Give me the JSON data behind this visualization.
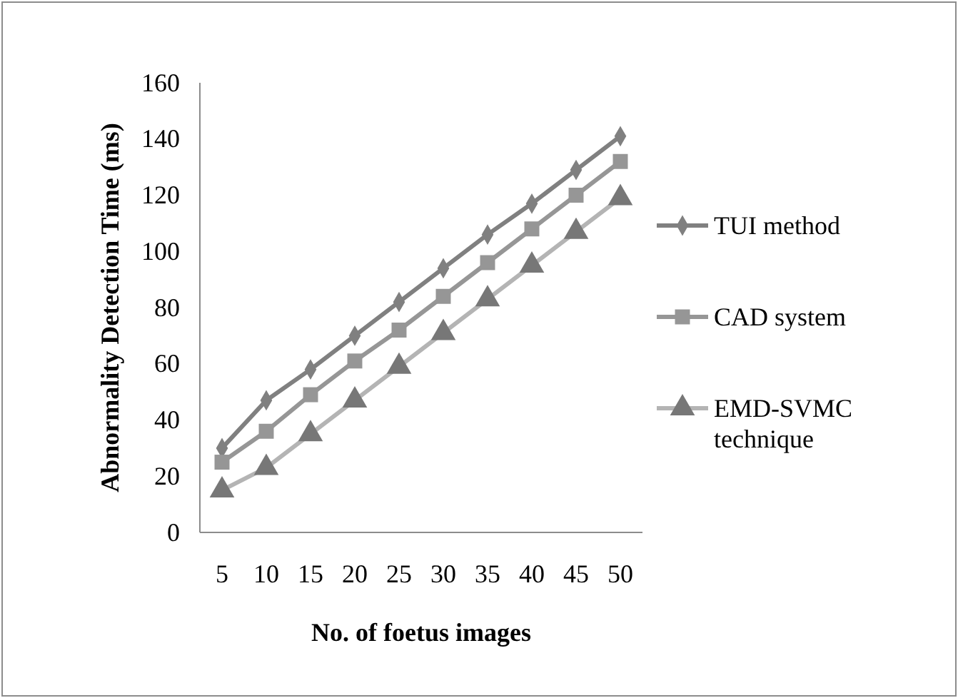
{
  "chart_data": {
    "type": "line",
    "xlabel": "No. of foetus images",
    "ylabel": "Abnormality Detection Time (ms)",
    "categories": [
      "5",
      "10",
      "15",
      "20",
      "25",
      "30",
      "35",
      "40",
      "45",
      "50"
    ],
    "ylim": [
      0,
      160
    ],
    "yticks": [
      0,
      20,
      40,
      60,
      80,
      100,
      120,
      140,
      160
    ],
    "grid": false,
    "legend": "right",
    "series": [
      {
        "name": "TUI method",
        "color": "#808080",
        "marker": "diamond",
        "values": [
          30,
          47,
          58,
          70,
          82,
          94,
          106,
          117,
          129,
          141
        ]
      },
      {
        "name": "CAD system",
        "color": "#969696",
        "marker": "square",
        "values": [
          25,
          36,
          49,
          61,
          72,
          84,
          96,
          108,
          120,
          132
        ]
      },
      {
        "name": "EMD-SVMC technique",
        "color": "#b4b4b4",
        "marker": "triangle",
        "values": [
          15,
          23,
          35,
          47,
          59,
          71,
          83,
          95,
          107,
          119
        ]
      }
    ]
  }
}
